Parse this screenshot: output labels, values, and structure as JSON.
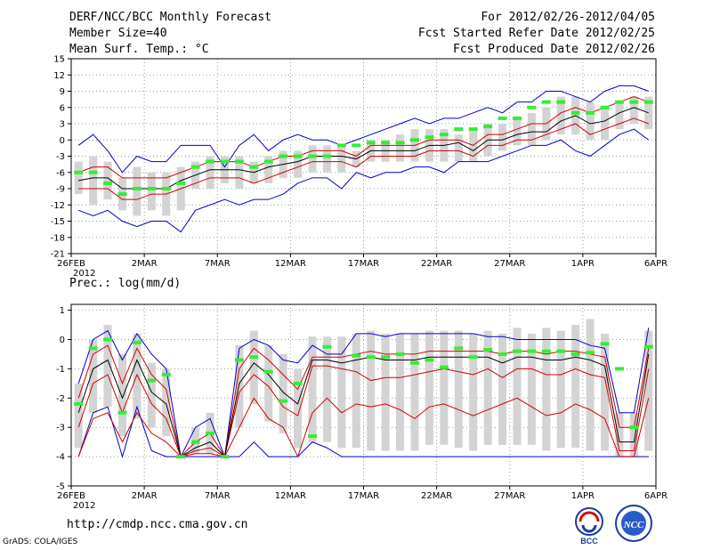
{
  "header": {
    "title": "DERF/NCC/BCC Monthly Forecast",
    "member": "Member Size=40",
    "variable": "Mean Surf. Temp.: °C",
    "period": "For 2012/02/26-2012/04/05",
    "started": "Fcst Started Refer Date 2012/02/25",
    "produced": "Fcst Produced Date 2012/02/26"
  },
  "prec_label": "Prec.: log(mm/d)",
  "footer_url": "http://cmdp.ncc.cma.gov.cn",
  "grads_credit": "GrADS: COLA/IGES",
  "logos": {
    "bcc": "BCC",
    "ncc": "NCC"
  },
  "colors": {
    "box": "#d3d3d3",
    "mean": "#000000",
    "spread": "#d00000",
    "extreme": "#0000cc",
    "obs": "#33ee33",
    "grid": "#999999"
  },
  "x_ticks": [
    "26FEB",
    "2MAR",
    "7MAR",
    "12MAR",
    "17MAR",
    "22MAR",
    "27MAR",
    "1APR",
    "6APR"
  ],
  "x_year": "2012",
  "chart_data": [
    {
      "type": "line",
      "title": "Mean Surf. Temp.: °C",
      "ylim": [
        -21,
        15
      ],
      "yticks": [
        -21,
        -18,
        -15,
        -12,
        -9,
        -6,
        -3,
        0,
        3,
        6,
        9,
        12,
        15
      ],
      "x_days": 40,
      "series": [
        {
          "name": "max",
          "values": [
            -1,
            1,
            -2,
            -6,
            -3,
            -4,
            -4,
            -1,
            -1,
            -1,
            -5,
            -1,
            1,
            -2,
            0,
            1,
            0,
            0,
            -1,
            0,
            1,
            2,
            3,
            4,
            3,
            4,
            4,
            5,
            6,
            5,
            7,
            7,
            9,
            9,
            8,
            7,
            9,
            10,
            10,
            9
          ]
        },
        {
          "name": "upper",
          "values": [
            -6,
            -5,
            -5,
            -7,
            -7,
            -7,
            -7,
            -6,
            -5,
            -4,
            -4,
            -4,
            -5,
            -4,
            -3,
            -3,
            -2,
            -2,
            -2,
            -3,
            -1,
            -1,
            -1,
            -1,
            0,
            0,
            0,
            -1,
            1,
            1,
            2,
            3,
            3,
            5,
            6,
            5,
            6,
            7,
            8,
            7
          ]
        },
        {
          "name": "mean",
          "values": [
            -7.5,
            -7,
            -7,
            -9,
            -9,
            -9,
            -9,
            -7.5,
            -6.5,
            -5.5,
            -5.5,
            -5.5,
            -6,
            -5,
            -4.5,
            -4,
            -3,
            -3,
            -3,
            -3.5,
            -2,
            -2,
            -2,
            -2,
            -1,
            -1,
            -0.5,
            -2,
            0,
            0,
            1,
            1.5,
            1.5,
            3.5,
            4.5,
            3,
            3.5,
            5,
            6,
            5
          ]
        },
        {
          "name": "lower",
          "values": [
            -9,
            -9,
            -9,
            -11,
            -11,
            -10,
            -10,
            -9,
            -8,
            -7,
            -7,
            -7,
            -8,
            -7,
            -6,
            -5,
            -4,
            -4,
            -4,
            -5,
            -3,
            -3,
            -3,
            -3,
            -2,
            -2,
            -2,
            -3,
            -1,
            -1,
            0,
            0,
            1,
            2,
            3,
            1,
            2,
            3,
            4,
            3
          ]
        },
        {
          "name": "min",
          "values": [
            -13,
            -14,
            -13,
            -15,
            -16,
            -15,
            -15,
            -17,
            -13,
            -12,
            -11,
            -12,
            -11,
            -11,
            -10,
            -8,
            -7,
            -7,
            -9,
            -6,
            -7,
            -6,
            -6,
            -5,
            -5,
            -6,
            -4,
            -4,
            -4,
            -3,
            -2,
            -1,
            -1,
            0,
            -2,
            -3,
            -1,
            1,
            2,
            0
          ]
        },
        {
          "name": "box_top",
          "values": [
            -4,
            -3,
            -4,
            -7,
            -5,
            -6,
            -6,
            -5,
            -4,
            -3,
            -3,
            -3,
            -4,
            -3,
            -2,
            -2,
            -1,
            -1,
            -1,
            -2,
            0,
            0,
            1,
            2,
            2,
            2,
            1,
            2,
            3,
            3,
            4,
            5,
            6,
            8,
            8,
            7,
            6,
            7,
            8,
            8
          ]
        },
        {
          "name": "box_bottom",
          "values": [
            -10,
            -12,
            -11,
            -13,
            -14,
            -13,
            -14,
            -13,
            -9,
            -9,
            -8,
            -9,
            -8,
            -8,
            -7,
            -7,
            -6,
            -6,
            -6,
            -5,
            -4,
            -4,
            -4,
            -4,
            -4,
            -4,
            -4,
            -4,
            -3,
            -2,
            -1,
            -1,
            0,
            1,
            1,
            0,
            0,
            2,
            3,
            2
          ]
        },
        {
          "name": "obs",
          "values": [
            -6,
            -6,
            -8,
            -10,
            -9,
            -9,
            -9,
            -8,
            -5,
            -4,
            -4,
            -4,
            -5,
            -4,
            -3,
            -3,
            -3,
            -3,
            -1,
            -1,
            -0.5,
            -0.5,
            -0.5,
            0,
            0.5,
            1,
            2,
            2,
            2.5,
            4,
            4,
            6,
            7,
            7,
            5,
            5,
            6,
            7,
            7,
            7
          ]
        }
      ]
    },
    {
      "type": "line",
      "title": "Prec.: log(mm/d)",
      "ylim": [
        -5,
        1.2
      ],
      "yticks": [
        -5,
        -4,
        -3,
        -2,
        -1,
        0,
        1
      ],
      "x_days": 40,
      "series": [
        {
          "name": "max",
          "values": [
            -1.5,
            0,
            0.3,
            -0.7,
            0.2,
            -0.5,
            -1,
            -4,
            -3,
            -2.7,
            -4,
            -0.3,
            0,
            -0.2,
            -0.7,
            -0.8,
            -0.2,
            -0.5,
            -0.5,
            0.2,
            0.2,
            0.1,
            0.2,
            0.2,
            0.2,
            0.2,
            0.2,
            0.2,
            0.1,
            0.1,
            0,
            0,
            0,
            0,
            0,
            -0.2,
            -0.3,
            -2.5,
            -2.5,
            0.4
          ]
        },
        {
          "name": "upper",
          "values": [
            -2,
            -0.5,
            -0.2,
            -1.5,
            -0.3,
            -1.2,
            -1.7,
            -4,
            -3.5,
            -3.2,
            -4,
            -1,
            -0.3,
            -0.7,
            -1.2,
            -1.7,
            -0.6,
            -0.6,
            -0.6,
            -0.5,
            -0.4,
            -0.5,
            -0.5,
            -0.5,
            -0.4,
            -0.4,
            -0.4,
            -0.4,
            -0.4,
            -0.5,
            -0.4,
            -0.4,
            -0.5,
            -0.4,
            -0.4,
            -0.5,
            -0.6,
            -3,
            -3,
            -0.3
          ]
        },
        {
          "name": "mean",
          "values": [
            -2.5,
            -1,
            -0.7,
            -2,
            -0.7,
            -1.8,
            -2.2,
            -4,
            -3.7,
            -3.5,
            -4,
            -1.5,
            -0.8,
            -1.2,
            -1.8,
            -2.2,
            -0.7,
            -0.7,
            -0.8,
            -0.7,
            -0.6,
            -0.7,
            -0.7,
            -0.7,
            -0.6,
            -0.6,
            -0.6,
            -0.6,
            -0.6,
            -0.8,
            -0.6,
            -0.6,
            -0.7,
            -0.7,
            -0.6,
            -0.7,
            -0.9,
            -3.5,
            -3.5,
            -0.5
          ]
        },
        {
          "name": "lower",
          "values": [
            -3,
            -1.5,
            -1.2,
            -2.5,
            -1.2,
            -2.2,
            -2.7,
            -4,
            -3.8,
            -3.7,
            -4,
            -1.8,
            -1.2,
            -1.6,
            -2.3,
            -2.6,
            -0.9,
            -0.9,
            -1,
            -1.1,
            -1.4,
            -1.3,
            -1.3,
            -1.2,
            -1.1,
            -1,
            -1.1,
            -1.2,
            -1,
            -1.3,
            -1,
            -1,
            -1.2,
            -1.2,
            -1,
            -1.2,
            -1.3,
            -3.8,
            -3.8,
            -1
          ]
        },
        {
          "name": "min",
          "values": [
            -4,
            -2.7,
            -2.5,
            -3.5,
            -2.5,
            -3.2,
            -3.5,
            -4,
            -3.9,
            -3.9,
            -4,
            -3,
            -2,
            -2.7,
            -3,
            -4,
            -2.5,
            -2,
            -2.5,
            -2.2,
            -2.3,
            -2.2,
            -2.4,
            -2.7,
            -2.3,
            -2.2,
            -2.4,
            -2.6,
            -2.4,
            -2.2,
            -2,
            -2.3,
            -2.6,
            -2.5,
            -2.2,
            -2.4,
            -2.7,
            -4,
            -4,
            -2
          ]
        },
        {
          "name": "min_member",
          "values": [
            -4,
            -2.5,
            -2.3,
            -4,
            -2.3,
            -3.8,
            -4,
            -4,
            -4,
            -4,
            -4,
            -4,
            -3.5,
            -4,
            -4,
            -4,
            -3.5,
            -3.7,
            -4,
            -4,
            -4,
            -4,
            -4,
            -4,
            -4,
            -4,
            -4,
            -4,
            -4,
            -4,
            -4,
            -4,
            -4,
            -4,
            -4,
            -4,
            -4,
            -4,
            -4,
            -4
          ]
        },
        {
          "name": "box_top",
          "values": [
            -1.5,
            0,
            0.5,
            -0.5,
            0.2,
            -0.8,
            -1,
            -4,
            -3,
            -2.5,
            -4,
            -0.2,
            0.3,
            -0.2,
            -0.5,
            -1,
            0.1,
            0.1,
            0.1,
            0.2,
            0.3,
            0.2,
            0.2,
            0.2,
            0.3,
            0.3,
            0.3,
            0.2,
            0.3,
            0.2,
            0.4,
            0.2,
            0.4,
            0.3,
            0.5,
            0.7,
            0.2,
            -2.5,
            -2.5,
            0.3
          ]
        },
        {
          "name": "box_bottom",
          "values": [
            -3.7,
            -2.5,
            -2.3,
            -3.3,
            -2.7,
            -3,
            -3.3,
            -4,
            -3.9,
            -3.9,
            -4,
            -3,
            -2.2,
            -2.8,
            -3.2,
            -3.7,
            -3.5,
            -3.5,
            -3.7,
            -3.7,
            -3.8,
            -3.8,
            -3.8,
            -3.8,
            -3.6,
            -3.6,
            -3.7,
            -3.8,
            -3.6,
            -3.6,
            -3.6,
            -3.6,
            -3.8,
            -3.7,
            -3.7,
            -3.8,
            -3.8,
            -4,
            -4,
            -3.8
          ]
        },
        {
          "name": "obs",
          "values": [
            -2.2,
            -0.3,
            0,
            -2.5,
            -0.1,
            -1.4,
            -1.2,
            -4,
            -3.5,
            -3.2,
            -4,
            -0.7,
            -0.6,
            -1.1,
            -2.1,
            -1.5,
            -3.3,
            -0.25,
            null,
            -0.55,
            -0.6,
            -0.6,
            -0.5,
            -0.8,
            -0.7,
            -0.95,
            -0.3,
            -0.6,
            -0.35,
            -0.5,
            -0.4,
            -0.4,
            -0.4,
            -0.4,
            -0.5,
            -0.45,
            -0.15,
            -1,
            -3,
            -0.25
          ]
        }
      ]
    }
  ]
}
